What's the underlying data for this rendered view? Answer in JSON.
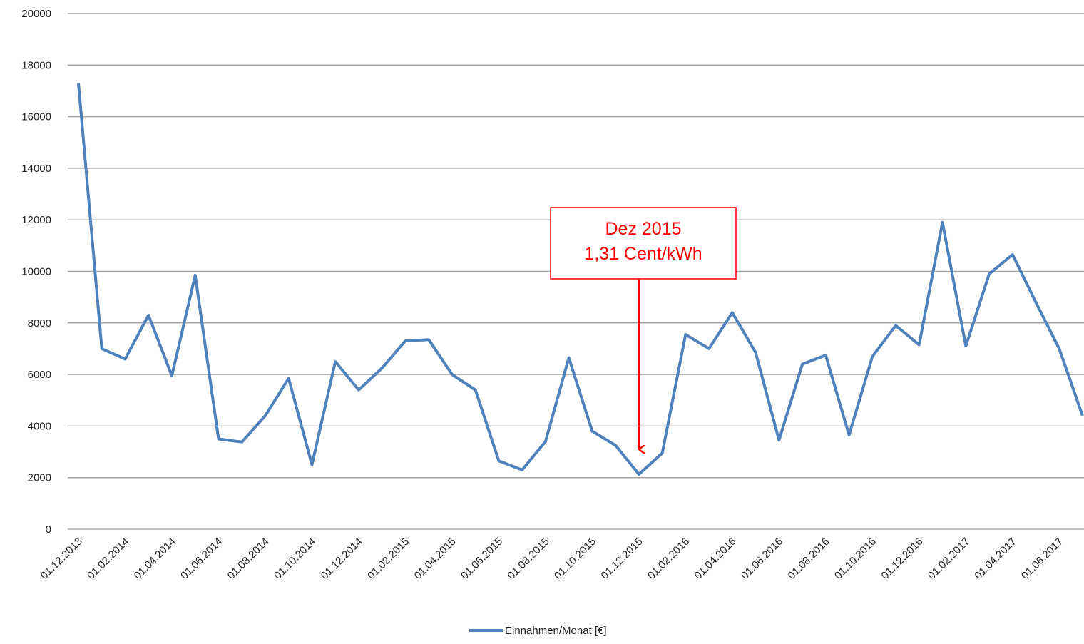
{
  "chart_data": {
    "type": "line",
    "categories": [
      "01.12.2013",
      null,
      "01.02.2014",
      null,
      "01.04.2014",
      null,
      "01.06.2014",
      null,
      "01.08.2014",
      null,
      "01.10.2014",
      null,
      "01.12.2014",
      null,
      "01.02.2015",
      null,
      "01.04.2015",
      null,
      "01.06.2015",
      null,
      "01.08.2015",
      null,
      "01.10.2015",
      null,
      "01.12.2015",
      null,
      "01.02.2016",
      null,
      "01.04.2016",
      null,
      "01.06.2016",
      null,
      "01.08.2016",
      null,
      "01.10.2016",
      null,
      "01.12.2016",
      null,
      "01.02.2017",
      null,
      "01.04.2017",
      null,
      "01.06.2017",
      null
    ],
    "series": [
      {
        "name": "Einnahmen/Monat [€]",
        "color": "#4f81bd",
        "values": [
          17300,
          7000,
          6600,
          8300,
          5950,
          9850,
          3500,
          3380,
          4400,
          5850,
          2500,
          6500,
          5400,
          6250,
          7300,
          7350,
          6000,
          5400,
          2650,
          2300,
          3400,
          6650,
          3800,
          3250,
          2130,
          2950,
          7550,
          7000,
          8400,
          6850,
          3450,
          6400,
          6750,
          3650,
          6700,
          7900,
          7150,
          11900,
          7100,
          9900,
          10650,
          8800,
          7000,
          4400
        ]
      }
    ],
    "ylim": [
      0,
      20000
    ],
    "yticks": [
      0,
      2000,
      4000,
      6000,
      8000,
      10000,
      12000,
      14000,
      16000,
      18000,
      20000
    ],
    "grid": true,
    "legend": "bottom",
    "annotation": {
      "lines": [
        "Dez 2015",
        "1,31 Cent/kWh"
      ],
      "category": 24,
      "color": "#ff0000"
    }
  }
}
